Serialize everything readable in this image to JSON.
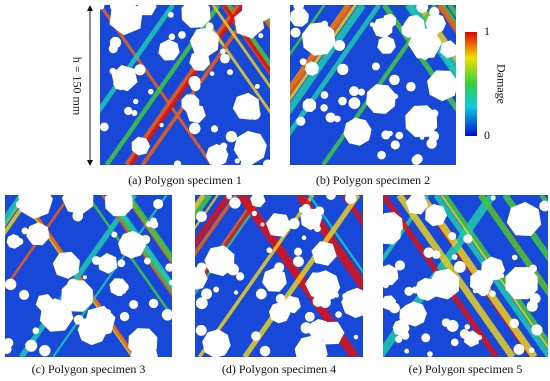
{
  "dimension_label": "h = 150 mm",
  "colorbar": {
    "label": "Damage",
    "max_label": "1",
    "min_label": "0"
  },
  "panels": [
    {
      "caption": "(a) Polygon specimen 1"
    },
    {
      "caption": "(b) Polygon specimen 2"
    },
    {
      "caption": "(c) Polygon specimen 3"
    },
    {
      "caption": "(d) Polygon specimen 4"
    },
    {
      "caption": "(e) Polygon specimen 5"
    }
  ]
}
